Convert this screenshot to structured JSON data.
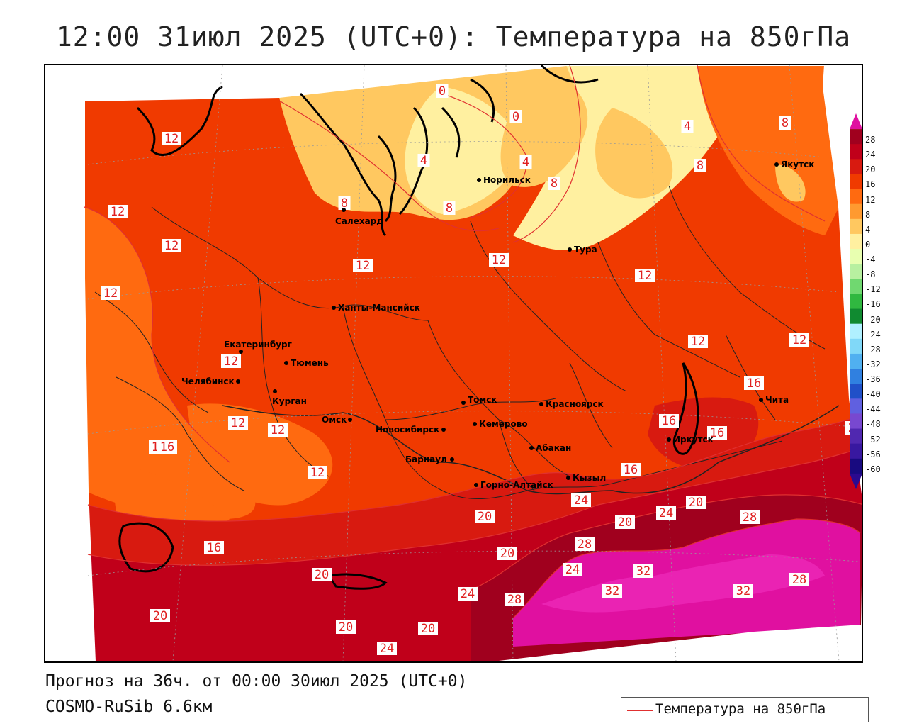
{
  "title": "12:00 31июл 2025 (UTC+0): Температура на 850гПа",
  "footer": {
    "forecast": "Прогноз на 36ч. от 00:00 30июл 2025 (UTC+0)",
    "model": "COSMO-RuSib 6.6км"
  },
  "legend": {
    "label": "Температура на 850гПа",
    "line_color": "#e03030"
  },
  "colorbar": {
    "labels": [
      "28",
      "24",
      "20",
      "16",
      "12",
      "8",
      "4",
      "0",
      "-4",
      "-8",
      "-12",
      "-16",
      "-20",
      "-24",
      "-28",
      "-32",
      "-36",
      "-40",
      "-44",
      "-48",
      "-52",
      "-56",
      "-60"
    ],
    "colors": [
      "#a0001e",
      "#c0001a",
      "#d81a10",
      "#f03a00",
      "#ff6a10",
      "#ff9a30",
      "#ffc860",
      "#fff0a0",
      "#e8ffb0",
      "#b8f0a0",
      "#70d870",
      "#30b840",
      "#108a30",
      "#b0f0ff",
      "#80d8f8",
      "#50b0f0",
      "#3080e0",
      "#2050c8",
      "#6060e0",
      "#7848d0",
      "#5028b0",
      "#3818a0",
      "#180a80"
    ]
  },
  "cities": [
    {
      "name": "Норильск"
    },
    {
      "name": "Якутск"
    },
    {
      "name": "Салехард"
    },
    {
      "name": "Тура"
    },
    {
      "name": "Ханты-Мансийск"
    },
    {
      "name": "Екатеринбург"
    },
    {
      "name": "Тюмень"
    },
    {
      "name": "Челябинск"
    },
    {
      "name": "Курган"
    },
    {
      "name": "Томск"
    },
    {
      "name": "Красноярск"
    },
    {
      "name": "Омск"
    },
    {
      "name": "Новосибирск"
    },
    {
      "name": "Кемерово"
    },
    {
      "name": "Абакан"
    },
    {
      "name": "Барнаул"
    },
    {
      "name": "Иркутск"
    },
    {
      "name": "Чита"
    },
    {
      "name": "Горно-Алтайск"
    },
    {
      "name": "Кызыл"
    }
  ],
  "isotherm_labels": [
    "0",
    "0",
    "4",
    "4",
    "4",
    "8",
    "8",
    "8",
    "8",
    "8",
    "12",
    "12",
    "12",
    "12",
    "12",
    "12",
    "12",
    "12",
    "12",
    "12",
    "12",
    "12",
    "12",
    "16",
    "16",
    "16",
    "16",
    "16",
    "16",
    "16",
    "20",
    "20",
    "20",
    "20",
    "20",
    "20",
    "20",
    "20",
    "20",
    "24",
    "24",
    "24",
    "24",
    "24",
    "28",
    "28",
    "28",
    "28",
    "32",
    "32",
    "32"
  ]
}
